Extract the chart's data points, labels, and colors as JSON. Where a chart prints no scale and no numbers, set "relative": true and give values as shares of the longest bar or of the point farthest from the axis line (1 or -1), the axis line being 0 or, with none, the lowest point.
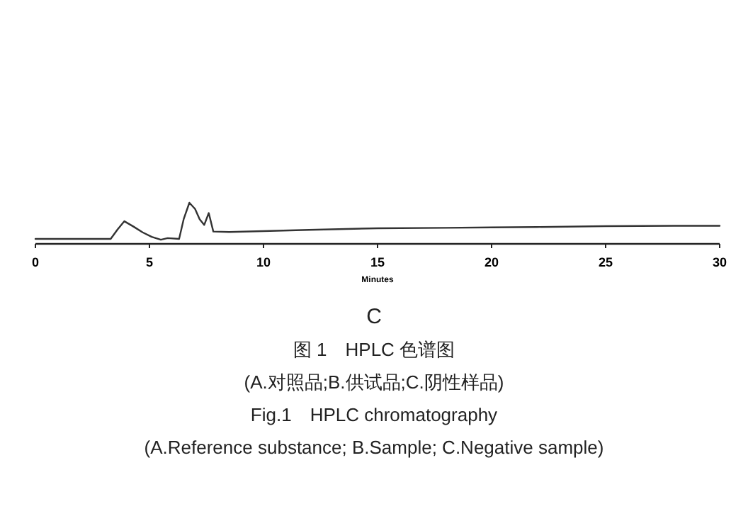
{
  "chart_data": {
    "type": "line",
    "relative": true,
    "title": "图 1　HPLC 色谱图",
    "subtitle": "(A.对照品;B.供试品;C.阴性样品)",
    "xlabel": "Minutes",
    "annotations": [
      "C",
      "Fig.1　HPLC chromatography",
      "(A.Reference substance; B.Sample; C.Negative sample)"
    ],
    "xlim": [
      0,
      30
    ],
    "xticks": [
      0,
      5,
      10,
      15,
      20,
      25,
      30
    ],
    "series": [
      {
        "color": "#333333",
        "x": [
          0,
          1,
          2,
          3,
          3.3,
          3.6,
          3.9,
          4.3,
          4.7,
          5.1,
          5.5,
          5.8,
          6.3,
          6.5,
          6.75,
          7.0,
          7.2,
          7.4,
          7.6,
          7.8,
          8.5,
          10,
          12,
          15,
          18,
          20,
          22,
          25,
          28,
          30
        ],
        "values": [
          0.12,
          0.12,
          0.12,
          0.12,
          0.12,
          0.35,
          0.55,
          0.42,
          0.28,
          0.17,
          0.1,
          0.14,
          0.12,
          0.6,
          1,
          0.85,
          0.6,
          0.46,
          0.75,
          0.3,
          0.29,
          0.31,
          0.34,
          0.38,
          0.39,
          0.4,
          0.41,
          0.43,
          0.44,
          0.44
        ]
      }
    ]
  }
}
